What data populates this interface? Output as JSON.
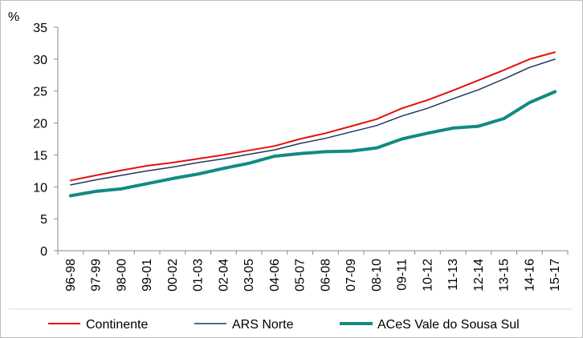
{
  "chart_data": {
    "type": "line",
    "ylabel": "%",
    "ylim": [
      0,
      35
    ],
    "yticks": [
      "0",
      "5",
      "10",
      "15",
      "20",
      "25",
      "30",
      "35"
    ],
    "categories": [
      "96-98",
      "97-99",
      "98-00",
      "99-01",
      "00-02",
      "01-03",
      "02-04",
      "03-05",
      "04-06",
      "05-07",
      "06-08",
      "07-09",
      "08-10",
      "09-11",
      "10-12",
      "11-13",
      "12-14",
      "13-15",
      "14-16",
      "15-17"
    ],
    "series": [
      {
        "name": "Continente",
        "color": "#e3120b",
        "values": [
          11.0,
          11.8,
          12.6,
          13.3,
          13.8,
          14.4,
          15.0,
          15.7,
          16.4,
          17.5,
          18.4,
          19.5,
          20.6,
          22.3,
          23.6,
          25.1,
          26.7,
          28.3,
          30.0,
          31.1
        ]
      },
      {
        "name": "ARS Norte",
        "color": "#1f3864",
        "values": [
          10.3,
          11.1,
          11.8,
          12.5,
          13.1,
          13.8,
          14.4,
          15.1,
          15.8,
          16.8,
          17.6,
          18.6,
          19.6,
          21.1,
          22.3,
          23.8,
          25.2,
          26.9,
          28.7,
          30.0
        ]
      },
      {
        "name": "ACeS Vale do Sousa Sul",
        "color": "#138a83",
        "values": [
          8.6,
          9.3,
          9.7,
          10.5,
          11.3,
          12.0,
          12.9,
          13.7,
          14.8,
          15.2,
          15.5,
          15.6,
          16.1,
          17.5,
          18.4,
          19.2,
          19.5,
          20.7,
          23.2,
          24.9
        ]
      }
    ],
    "grid": false,
    "legend": "bottom"
  }
}
